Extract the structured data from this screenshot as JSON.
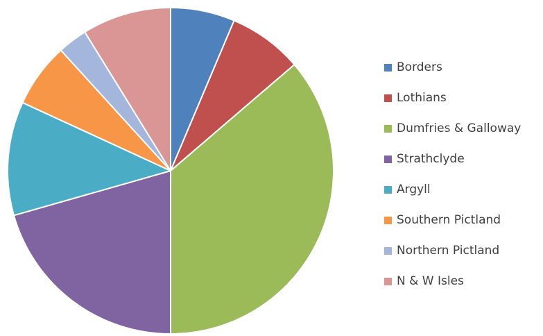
{
  "chart_data": {
    "type": "pie",
    "title": "",
    "categories": [
      "Borders",
      "Lothians",
      "Dumfries & Galloway",
      "Strathclyde",
      "Argyll",
      "Southern Pictland",
      "Northern Pictland",
      "N & W Isles"
    ],
    "values": [
      6.5,
      7.5,
      37.0,
      21.0,
      11.5,
      6.5,
      3.0,
      9.0
    ],
    "colors": [
      "#4F81BD",
      "#C0504D",
      "#9BBB59",
      "#8064A2",
      "#4BACC6",
      "#F79646",
      "#A5B6DD",
      "#D99694"
    ],
    "start": "top",
    "direction": "clockwise",
    "legend_position": "right"
  }
}
